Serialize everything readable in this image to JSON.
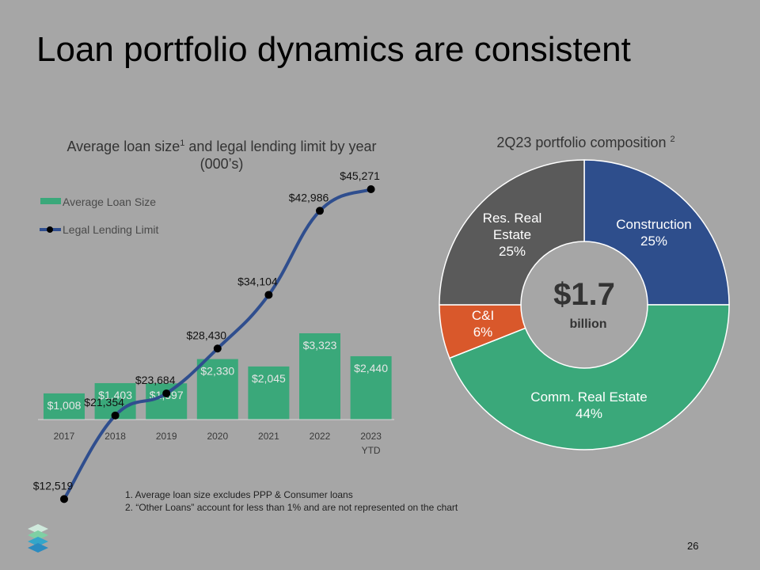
{
  "title": "Loan portfolio dynamics are consistent",
  "left_chart_title": "Average loan size",
  "left_chart_title_sup": "1",
  "left_chart_title_rest": " and legal lending limit by year",
  "left_chart_title_line2": "(000’s)",
  "right_chart_title": "2Q23 portfolio composition ",
  "right_chart_title_sup": "2",
  "center_value": "$1.7",
  "center_unit": "billion",
  "footnotes": [
    "1.  Average loan size excludes PPP & Consumer loans",
    "2.  “Other Loans” account for less than 1% and are not represented on the chart"
  ],
  "page_number": "26",
  "colors": {
    "bar": "#3aa87a",
    "line": "#2f4e8e",
    "construction": "#2e4e8c",
    "comm_real_estate": "#3aa87a",
    "ci": "#d9582b",
    "res_real_estate": "#5a5a5a",
    "background": "#a6a6a6"
  },
  "chart_data": [
    {
      "type": "bar",
      "categories": [
        "2017",
        "2018",
        "2019",
        "2020",
        "2021",
        "2022",
        "2023\nYTD"
      ],
      "series": [
        {
          "name": "Average Loan Size",
          "type": "bar",
          "values": [
            1008,
            1403,
            1397,
            2330,
            2045,
            3323,
            2440
          ],
          "labels": [
            "$1,008",
            "$1,403",
            "$1,397",
            "$2,330",
            "$2,045",
            "$3,323",
            "$2,440"
          ]
        },
        {
          "name": "Legal Lending Limit",
          "type": "line",
          "values": [
            12519,
            21354,
            23684,
            28430,
            34104,
            42986,
            45271
          ],
          "labels": [
            "$12,519",
            "$21,354",
            "$23,684",
            "$28,430",
            "$34,104",
            "$42,986",
            "$45,271"
          ]
        }
      ],
      "legend": "top-left"
    },
    {
      "type": "pie",
      "donut": true,
      "slices": [
        {
          "label": "Construction",
          "value": 25,
          "pct": "25%"
        },
        {
          "label": "Comm. Real Estate",
          "value": 44,
          "pct": "44%"
        },
        {
          "label": "C&I",
          "value": 6,
          "pct": "6%"
        },
        {
          "label": "Res. Real\nEstate",
          "value": 25,
          "pct": "25%"
        }
      ]
    }
  ]
}
